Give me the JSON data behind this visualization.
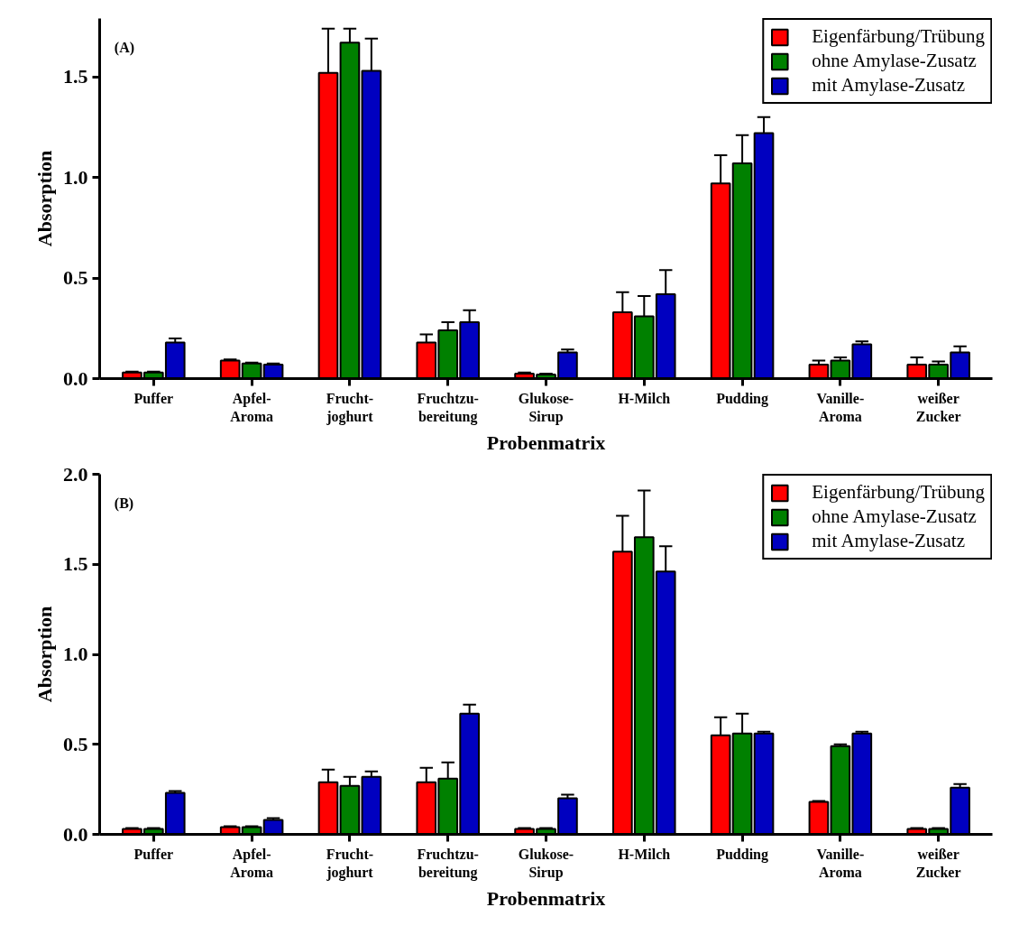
{
  "chart_data": [
    {
      "type": "bar",
      "xlabel": "Probenmatrix",
      "ylabel": "Absorption",
      "annotations": [
        "(A)"
      ],
      "categories": [
        "Puffer",
        "Apfel-\nAroma",
        "Frucht-\njoghurt",
        "Fruchtzu-\nbereitung",
        "Glukose-\nSirup",
        "H-Milch",
        "Pudding",
        "Vanille-\nAroma",
        "weißer\nZucker"
      ],
      "series": [
        {
          "name": "Eigenfärbung/Trübung",
          "color": "#ff0000",
          "values": [
            0.03,
            0.09,
            1.52,
            0.18,
            0.025,
            0.33,
            0.97,
            0.07,
            0.07
          ],
          "errors": [
            [
              0.03,
              0.035
            ],
            [
              0.09,
              0.095
            ],
            [
              1.52,
              1.74
            ],
            [
              0.18,
              0.22
            ],
            [
              0.025,
              0.03
            ],
            [
              0.33,
              0.43
            ],
            [
              0.97,
              1.11
            ],
            [
              0.07,
              0.09
            ],
            [
              0.07,
              0.105
            ]
          ]
        },
        {
          "name": "ohne Amylase-Zusatz",
          "color": "#008000",
          "values": [
            0.03,
            0.075,
            1.67,
            0.24,
            0.02,
            0.31,
            1.07,
            0.09,
            0.07
          ],
          "errors": [
            [
              0.03,
              0.035
            ],
            [
              0.075,
              0.08
            ],
            [
              1.67,
              1.74
            ],
            [
              0.24,
              0.28
            ],
            [
              0.02,
              0.025
            ],
            [
              0.31,
              0.41
            ],
            [
              1.07,
              1.21
            ],
            [
              0.09,
              0.105
            ],
            [
              0.07,
              0.085
            ]
          ]
        },
        {
          "name": "mit Amylase-Zusatz",
          "color": "#0000c0",
          "values": [
            0.18,
            0.07,
            1.53,
            0.28,
            0.13,
            0.42,
            1.22,
            0.17,
            0.13
          ],
          "errors": [
            [
              0.18,
              0.2
            ],
            [
              0.07,
              0.075
            ],
            [
              1.53,
              1.69
            ],
            [
              0.28,
              0.34
            ],
            [
              0.13,
              0.145
            ],
            [
              0.42,
              0.54
            ],
            [
              1.22,
              1.3
            ],
            [
              0.17,
              0.185
            ],
            [
              0.13,
              0.16
            ]
          ]
        }
      ],
      "ylim": [
        0,
        1.79
      ],
      "yticks": [
        {
          "value": 0,
          "label": "0.0"
        },
        {
          "value": 0.5,
          "label": "0.5"
        },
        {
          "value": 1,
          "label": "1.0"
        },
        {
          "value": 1.5,
          "label": "1.5"
        }
      ],
      "grid": false,
      "legend": "top right"
    },
    {
      "type": "bar",
      "xlabel": "Probenmatrix",
      "ylabel": "Absorption",
      "annotations": [
        "(B)"
      ],
      "categories": [
        "Puffer",
        "Apfel-\nAroma",
        "Frucht-\njoghurt",
        "Fruchtzu-\nbereitung",
        "Glukose-\nSirup",
        "H-Milch",
        "Pudding",
        "Vanille-\nAroma",
        "weißer\nZucker"
      ],
      "series": [
        {
          "name": "Eigenfärbung/Trübung",
          "color": "#ff0000",
          "values": [
            0.03,
            0.04,
            0.29,
            0.29,
            0.03,
            1.57,
            0.55,
            0.18,
            0.03
          ],
          "errors": [
            [
              0.03,
              0.035
            ],
            [
              0.04,
              0.045
            ],
            [
              0.29,
              0.36
            ],
            [
              0.29,
              0.37
            ],
            [
              0.03,
              0.035
            ],
            [
              1.57,
              1.77
            ],
            [
              0.55,
              0.65
            ],
            [
              0.18,
              0.185
            ],
            [
              0.03,
              0.035
            ]
          ]
        },
        {
          "name": "ohne Amylase-Zusatz",
          "color": "#008000",
          "values": [
            0.03,
            0.04,
            0.27,
            0.31,
            0.03,
            1.65,
            0.56,
            0.49,
            0.03
          ],
          "errors": [
            [
              0.03,
              0.035
            ],
            [
              0.04,
              0.045
            ],
            [
              0.27,
              0.32
            ],
            [
              0.31,
              0.4
            ],
            [
              0.03,
              0.035
            ],
            [
              1.65,
              1.91
            ],
            [
              0.56,
              0.67
            ],
            [
              0.49,
              0.5
            ],
            [
              0.03,
              0.035
            ]
          ]
        },
        {
          "name": "mit Amylase-Zusatz",
          "color": "#0000c0",
          "values": [
            0.23,
            0.08,
            0.32,
            0.67,
            0.2,
            1.46,
            0.56,
            0.56,
            0.26
          ],
          "errors": [
            [
              0.23,
              0.24
            ],
            [
              0.08,
              0.09
            ],
            [
              0.32,
              0.35
            ],
            [
              0.67,
              0.72
            ],
            [
              0.2,
              0.22
            ],
            [
              1.46,
              1.6
            ],
            [
              0.56,
              0.57
            ],
            [
              0.56,
              0.57
            ],
            [
              0.26,
              0.28
            ]
          ]
        }
      ],
      "ylim": [
        0,
        2.0
      ],
      "yticks": [
        {
          "value": 0,
          "label": "0.0"
        },
        {
          "value": 0.5,
          "label": "0.5"
        },
        {
          "value": 1,
          "label": "1.0"
        },
        {
          "value": 1.5,
          "label": "1.5"
        },
        {
          "value": 2,
          "label": "2.0"
        }
      ],
      "grid": false,
      "legend": "top right"
    }
  ]
}
